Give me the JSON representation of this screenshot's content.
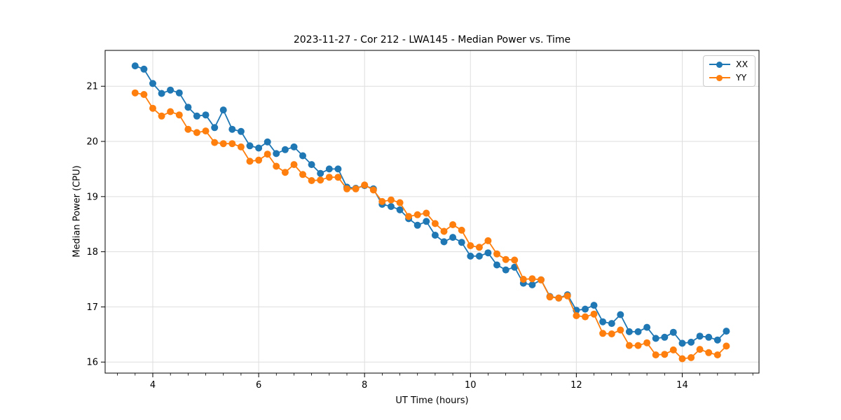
{
  "chart_data": {
    "type": "line",
    "title": "2023-11-27 - Cor 212 - LWA145 - Median Power vs. Time",
    "xlabel": "UT Time (hours)",
    "ylabel": "Median Power (CPU)",
    "xlim": [
      3.1,
      15.45
    ],
    "ylim": [
      15.8,
      21.65
    ],
    "xticks": [
      4,
      6,
      8,
      10,
      12,
      14
    ],
    "yticks": [
      16,
      17,
      18,
      19,
      20,
      21
    ],
    "minor_xtick_step_hours": 0.3333,
    "grid": true,
    "legend_position": "upper-right",
    "x": [
      3.667,
      3.833,
      4.0,
      4.167,
      4.333,
      4.5,
      4.667,
      4.833,
      5.0,
      5.167,
      5.333,
      5.5,
      5.667,
      5.833,
      6.0,
      6.167,
      6.333,
      6.5,
      6.667,
      6.833,
      7.0,
      7.167,
      7.333,
      7.5,
      7.667,
      7.833,
      8.0,
      8.167,
      8.333,
      8.5,
      8.667,
      8.833,
      9.0,
      9.167,
      9.333,
      9.5,
      9.667,
      9.833,
      10.0,
      10.167,
      10.333,
      10.5,
      10.667,
      10.833,
      11.0,
      11.167,
      11.333,
      11.5,
      11.667,
      11.833,
      12.0,
      12.167,
      12.333,
      12.5,
      12.667,
      12.833,
      13.0,
      13.167,
      13.333,
      13.5,
      13.667,
      13.833,
      14.0,
      14.167,
      14.333,
      14.5,
      14.667,
      14.833
    ],
    "series": [
      {
        "name": "XX",
        "color": "#1f77b4",
        "values": [
          21.37,
          21.31,
          21.05,
          20.87,
          20.93,
          20.88,
          20.62,
          20.46,
          20.48,
          20.25,
          20.57,
          20.22,
          20.18,
          19.92,
          19.88,
          19.99,
          19.78,
          19.85,
          19.9,
          19.74,
          19.58,
          19.42,
          19.5,
          19.5,
          19.17,
          19.15,
          19.2,
          19.14,
          18.86,
          18.82,
          18.76,
          18.6,
          18.48,
          18.55,
          18.3,
          18.18,
          18.26,
          18.17,
          17.92,
          17.92,
          17.98,
          17.76,
          17.67,
          17.72,
          17.43,
          17.4,
          17.49,
          17.19,
          17.16,
          17.22,
          16.94,
          16.96,
          17.03,
          16.73,
          16.7,
          16.86,
          16.55,
          16.55,
          16.63,
          16.43,
          16.45,
          16.54,
          16.34,
          16.36,
          16.47,
          16.45,
          16.4,
          16.56
        ]
      },
      {
        "name": "YY",
        "color": "#ff7f0e",
        "values": [
          20.88,
          20.85,
          20.6,
          20.46,
          20.54,
          20.48,
          20.22,
          20.16,
          20.19,
          19.98,
          19.96,
          19.96,
          19.9,
          19.64,
          19.66,
          19.77,
          19.55,
          19.44,
          19.58,
          19.4,
          19.29,
          19.3,
          19.35,
          19.35,
          19.14,
          19.14,
          19.21,
          19.12,
          18.91,
          18.94,
          18.89,
          18.64,
          18.67,
          18.7,
          18.51,
          18.37,
          18.49,
          18.39,
          18.11,
          18.08,
          18.2,
          17.96,
          17.86,
          17.85,
          17.5,
          17.51,
          17.49,
          17.18,
          17.16,
          17.2,
          16.84,
          16.82,
          16.87,
          16.52,
          16.51,
          16.58,
          16.3,
          16.3,
          16.35,
          16.13,
          16.14,
          16.22,
          16.06,
          16.08,
          16.23,
          16.17,
          16.13,
          16.29
        ]
      }
    ]
  },
  "colors": {
    "background": "#ffffff",
    "grid": "#dedede",
    "spine": "#000000",
    "tick": "#000000",
    "series_xx": "#1f77b4",
    "series_yy": "#ff7f0e",
    "legend_border": "#c9c9c9"
  }
}
